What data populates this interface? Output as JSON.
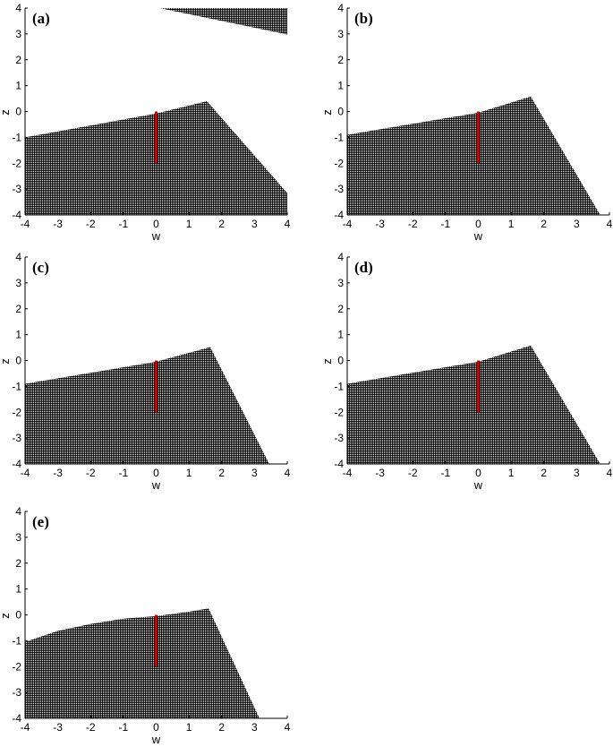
{
  "chart_data": [
    {
      "type": "area",
      "panel_label": "(a)",
      "xlabel": "w",
      "ylabel": "z",
      "xlim": [
        -4,
        4
      ],
      "ylim": [
        -4,
        4
      ],
      "xticks": [
        "-4",
        "-3",
        "-2",
        "-1",
        "0",
        "1",
        "2",
        "3",
        "4"
      ],
      "yticks": [
        "-4",
        "-3",
        "-2",
        "-1",
        "0",
        "1",
        "2",
        "3",
        "4"
      ],
      "region_color": "#111111",
      "segment_color": "#cc0000",
      "regions": [
        [
          [
            -4,
            -4
          ],
          [
            -4,
            -1.0
          ],
          [
            0,
            -0.08
          ],
          [
            1.55,
            0.4
          ],
          [
            4,
            -3.15
          ],
          [
            4,
            -4
          ]
        ],
        [
          [
            0.1,
            4
          ],
          [
            4,
            4
          ],
          [
            4,
            2.98
          ]
        ]
      ],
      "segment": [
        [
          0,
          0
        ],
        [
          0,
          -2
        ]
      ]
    },
    {
      "type": "area",
      "panel_label": "(b)",
      "xlabel": "w",
      "ylabel": "z",
      "xlim": [
        -4,
        4
      ],
      "ylim": [
        -4,
        4
      ],
      "xticks": [
        "-4",
        "-3",
        "-2",
        "-1",
        "0",
        "1",
        "2",
        "3",
        "4"
      ],
      "yticks": [
        "-4",
        "-3",
        "-2",
        "-1",
        "0",
        "1",
        "2",
        "3",
        "4"
      ],
      "region_color": "#111111",
      "segment_color": "#cc0000",
      "regions": [
        [
          [
            -4,
            -4
          ],
          [
            -4,
            -0.9
          ],
          [
            0,
            -0.05
          ],
          [
            1.6,
            0.58
          ],
          [
            3.72,
            -4
          ]
        ]
      ],
      "segment": [
        [
          0,
          0
        ],
        [
          0,
          -2
        ]
      ]
    },
    {
      "type": "area",
      "panel_label": "(c)",
      "xlabel": "w",
      "ylabel": "z",
      "xlim": [
        -4,
        4
      ],
      "ylim": [
        -4,
        4
      ],
      "xticks": [
        "-4",
        "-3",
        "-2",
        "-1",
        "0",
        "1",
        "2",
        "3",
        "4"
      ],
      "yticks": [
        "-4",
        "-3",
        "-2",
        "-1",
        "0",
        "1",
        "2",
        "3",
        "4"
      ],
      "region_color": "#111111",
      "segment_color": "#cc0000",
      "regions": [
        [
          [
            -4,
            -4
          ],
          [
            -4,
            -0.9
          ],
          [
            0,
            -0.05
          ],
          [
            1.65,
            0.52
          ],
          [
            3.45,
            -4
          ]
        ]
      ],
      "segment": [
        [
          0,
          0
        ],
        [
          0,
          -2
        ]
      ]
    },
    {
      "type": "area",
      "panel_label": "(d)",
      "xlabel": "w",
      "ylabel": "z",
      "xlim": [
        -4,
        4
      ],
      "ylim": [
        -4,
        4
      ],
      "xticks": [
        "-4",
        "-3",
        "-2",
        "-1",
        "0",
        "1",
        "2",
        "3",
        "4"
      ],
      "yticks": [
        "-4",
        "-3",
        "-2",
        "-1",
        "0",
        "1",
        "2",
        "3",
        "4"
      ],
      "region_color": "#111111",
      "segment_color": "#cc0000",
      "regions": [
        [
          [
            -4,
            -4
          ],
          [
            -4,
            -0.9
          ],
          [
            0,
            -0.05
          ],
          [
            1.6,
            0.58
          ],
          [
            3.72,
            -4
          ]
        ]
      ],
      "segment": [
        [
          0,
          0
        ],
        [
          0,
          -2
        ]
      ]
    },
    {
      "type": "area",
      "panel_label": "(e)",
      "xlabel": "w",
      "ylabel": "z",
      "xlim": [
        -4,
        4
      ],
      "ylim": [
        -4,
        4
      ],
      "xticks": [
        "-4",
        "-3",
        "-2",
        "-1",
        "0",
        "1",
        "2",
        "3",
        "4"
      ],
      "yticks": [
        "-4",
        "-3",
        "-2",
        "-1",
        "0",
        "1",
        "2",
        "3",
        "4"
      ],
      "region_color": "#111111",
      "segment_color": "#cc0000",
      "regions": [
        [
          [
            -4,
            -4
          ],
          [
            -4,
            -1.05
          ],
          [
            -3,
            -0.62
          ],
          [
            -2,
            -0.35
          ],
          [
            -1,
            -0.15
          ],
          [
            0,
            -0.05
          ],
          [
            1,
            0.12
          ],
          [
            1.6,
            0.25
          ],
          [
            3.15,
            -4
          ]
        ]
      ],
      "segment": [
        [
          0,
          0
        ],
        [
          0,
          -2
        ]
      ]
    }
  ]
}
